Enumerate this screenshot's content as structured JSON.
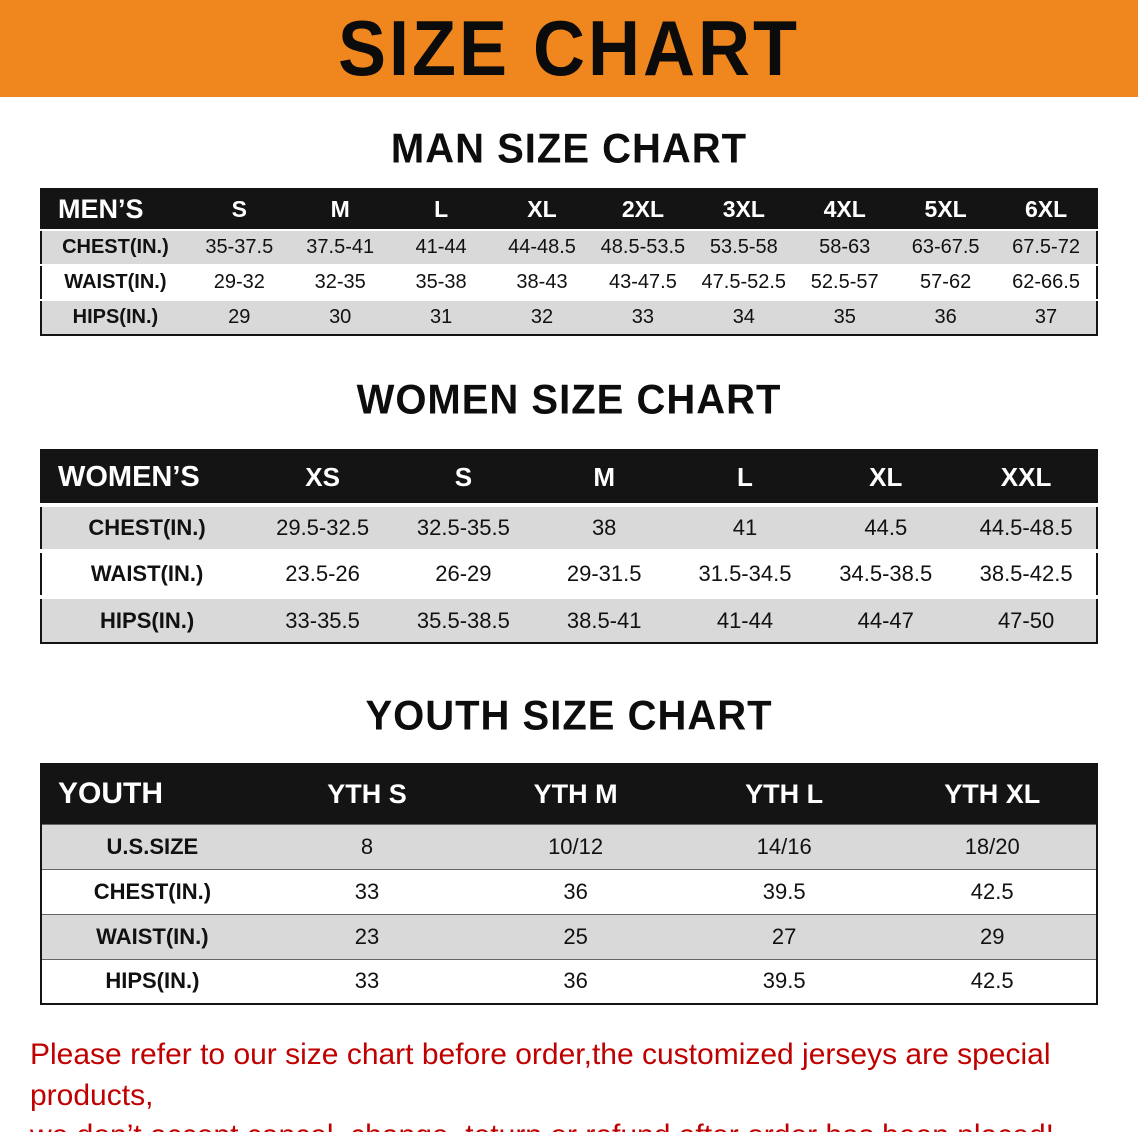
{
  "colors": {
    "banner_orange": "#F0871E",
    "header_black": "#141414",
    "row_gray": "#D9D9D9",
    "note_red": "#C00000"
  },
  "banner": {
    "title": "SIZE CHART"
  },
  "sections": {
    "men": {
      "heading": "MAN SIZE CHART",
      "table": {
        "header": [
          "MEN’S",
          "S",
          "M",
          "L",
          "XL",
          "2XL",
          "3XL",
          "4XL",
          "5XL",
          "6XL"
        ],
        "rows": [
          [
            "CHEST(IN.)",
            "35-37.5",
            "37.5-41",
            "41-44",
            "44-48.5",
            "48.5-53.5",
            "53.5-58",
            "58-63",
            "63-67.5",
            "67.5-72"
          ],
          [
            "WAIST(IN.)",
            "29-32",
            "32-35",
            "35-38",
            "38-43",
            "43-47.5",
            "47.5-52.5",
            "52.5-57",
            "57-62",
            "62-66.5"
          ],
          [
            "HIPS(IN.)",
            "29",
            "30",
            "31",
            "32",
            "33",
            "34",
            "35",
            "36",
            "37"
          ]
        ]
      }
    },
    "women": {
      "heading": "WOMEN SIZE CHART",
      "table": {
        "header": [
          "WOMEN’S",
          "XS",
          "S",
          "M",
          "L",
          "XL",
          "XXL"
        ],
        "rows": [
          [
            "CHEST(IN.)",
            "29.5-32.5",
            "32.5-35.5",
            "38",
            "41",
            "44.5",
            "44.5-48.5"
          ],
          [
            "WAIST(IN.)",
            "23.5-26",
            "26-29",
            "29-31.5",
            "31.5-34.5",
            "34.5-38.5",
            "38.5-42.5"
          ],
          [
            "HIPS(IN.)",
            "33-35.5",
            "35.5-38.5",
            "38.5-41",
            "41-44",
            "44-47",
            "47-50"
          ]
        ]
      }
    },
    "youth": {
      "heading": "YOUTH SIZE CHART",
      "table": {
        "header": [
          "YOUTH",
          "YTH S",
          "YTH M",
          "YTH L",
          "YTH XL"
        ],
        "rows": [
          [
            "U.S.SIZE",
            "8",
            "10/12",
            "14/16",
            "18/20"
          ],
          [
            "CHEST(IN.)",
            "33",
            "36",
            "39.5",
            "42.5"
          ],
          [
            "WAIST(IN.)",
            "23",
            "25",
            "27",
            "29"
          ],
          [
            "HIPS(IN.)",
            "33",
            "36",
            "39.5",
            "42.5"
          ]
        ]
      }
    }
  },
  "footnote": {
    "line1": "Please refer to our size chart before order,the customized jerseys are special products,",
    "line2": "we don’t accept cancel, change, teturn or refund after order has been placed!"
  }
}
